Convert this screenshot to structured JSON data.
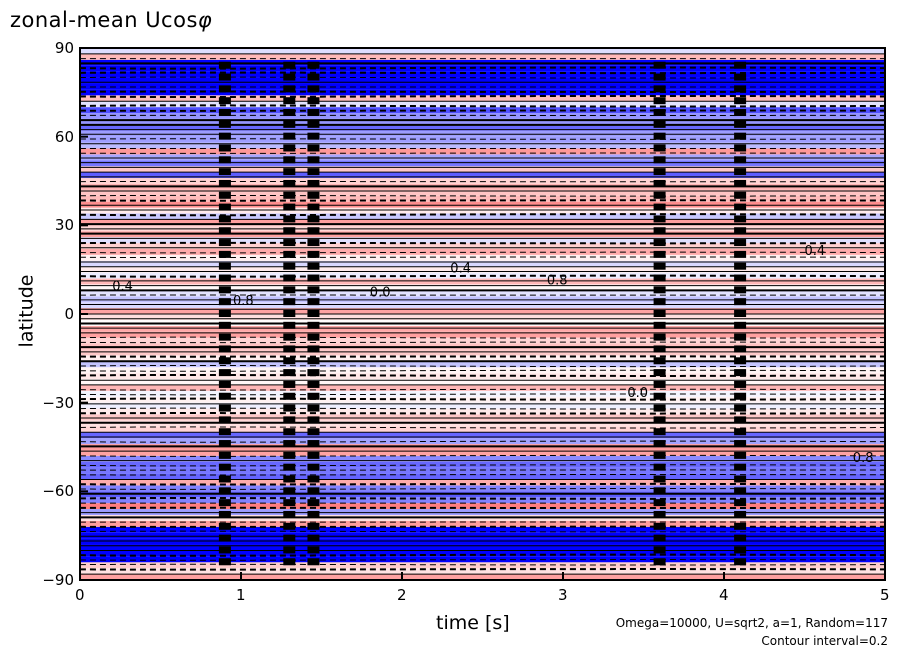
{
  "title_prefix": "zonal-mean Ucos",
  "title_symbol": "φ",
  "notes": {
    "params": "Omega=10000, U=sqrt2, a=1, Random=117",
    "contour": "Contour interval=0.2"
  },
  "chart_data": {
    "type": "heatmap",
    "xlabel": "time [s]",
    "ylabel": "latitude",
    "xlim": [
      0,
      5
    ],
    "ylim": [
      -90,
      90
    ],
    "x_ticks": [
      "0",
      "1",
      "2",
      "3",
      "4",
      "5"
    ],
    "y_ticks": [
      "90",
      "60",
      "30",
      "0",
      "−30",
      "−60",
      "−90"
    ],
    "contour_interval": 0.2,
    "colors": {
      "negative": "#0000ff",
      "positive": "#ff0000",
      "zero": "#ffffff",
      "contour": "#000000"
    },
    "contour_labels": [
      "0.4",
      "0.8",
      "0.0",
      "0.4",
      "0.8",
      "0.0",
      "0.4",
      "0.8"
    ]
  }
}
